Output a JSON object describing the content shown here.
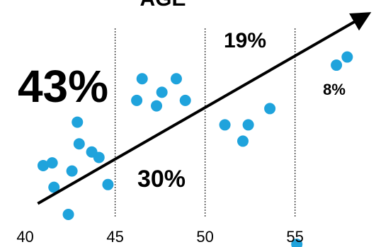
{
  "chart_data": {
    "type": "scatter",
    "title": "AGE",
    "x_ticks": [
      40,
      45,
      50,
      55
    ],
    "segments": [
      {
        "range": [
          40,
          45
        ],
        "label": "43%"
      },
      {
        "range": [
          45,
          50
        ],
        "label": "30%"
      },
      {
        "range": [
          50,
          55
        ],
        "label": "19%"
      },
      {
        "range": [
          55,
          60
        ],
        "label": "8%"
      }
    ],
    "points": [
      [
        41.0,
        39
      ],
      [
        41.5,
        40
      ],
      [
        41.6,
        31
      ],
      [
        42.4,
        21
      ],
      [
        42.6,
        37
      ],
      [
        42.9,
        55
      ],
      [
        43.0,
        47
      ],
      [
        43.7,
        44
      ],
      [
        44.1,
        42
      ],
      [
        44.6,
        32
      ],
      [
        46.2,
        63
      ],
      [
        46.5,
        71
      ],
      [
        47.3,
        61
      ],
      [
        47.6,
        66
      ],
      [
        48.4,
        71
      ],
      [
        48.9,
        63
      ],
      [
        51.1,
        54
      ],
      [
        52.1,
        48
      ],
      [
        52.4,
        54
      ],
      [
        53.6,
        60
      ],
      [
        55.1,
        10
      ],
      [
        57.3,
        76
      ],
      [
        57.9,
        79
      ]
    ],
    "trend_arrow": {
      "from": [
        40.7,
        25
      ],
      "to": [
        59.1,
        95
      ]
    },
    "xlim": [
      38.6,
      59.5
    ],
    "ylim": [
      9,
      100
    ],
    "grid": false
  },
  "colors": {
    "point": "#1fa3dc",
    "trend": "#000000",
    "divider": "#333333"
  }
}
